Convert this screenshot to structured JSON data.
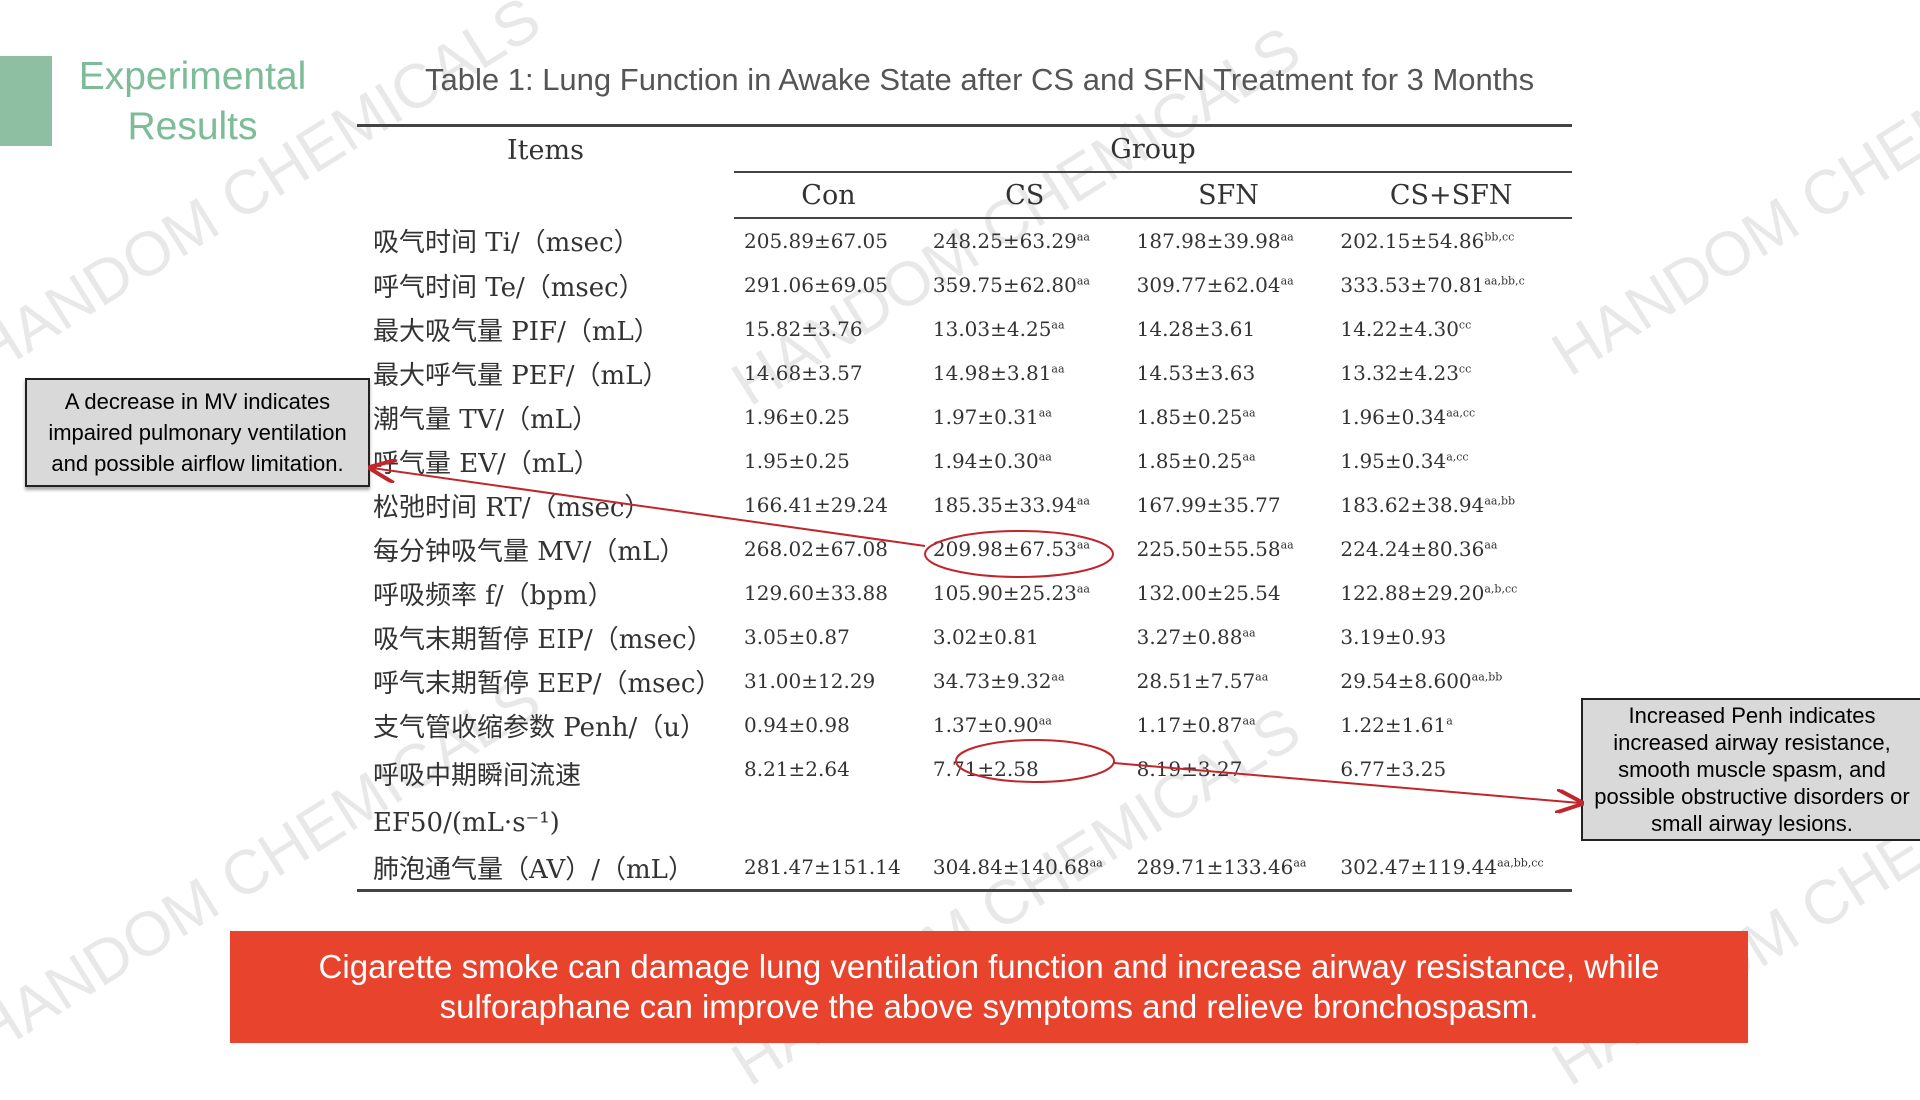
{
  "section_title": "Experimental Results",
  "table_title": "Table 1: Lung Function in Awake State after CS and SFN Treatment for 3 Months",
  "table": {
    "items_header": "Items",
    "group_header": "Group",
    "columns": [
      "Con",
      "CS",
      "SFN",
      "CS+SFN"
    ],
    "rows": [
      {
        "item": "吸气时间 Ti/（msec）",
        "con": "205.89±67.05",
        "cs": "248.25±63.29",
        "cs_sup": "aa",
        "sfn": "187.98±39.98",
        "sfn_sup": "aa",
        "cssfn": "202.15±54.86",
        "cssfn_sup": "bb,cc"
      },
      {
        "item": "呼气时间 Te/（msec）",
        "con": "291.06±69.05",
        "cs": "359.75±62.80",
        "cs_sup": "aa",
        "sfn": "309.77±62.04",
        "sfn_sup": "aa",
        "cssfn": "333.53±70.81",
        "cssfn_sup": "aa,bb,c"
      },
      {
        "item": "最大吸气量 PIF/（mL）",
        "con": "15.82±3.76",
        "cs": "13.03±4.25",
        "cs_sup": "aa",
        "sfn": "14.28±3.61",
        "sfn_sup": "",
        "cssfn": "14.22±4.30",
        "cssfn_sup": "cc"
      },
      {
        "item": "最大呼气量 PEF/（mL）",
        "con": "14.68±3.57",
        "cs": "14.98±3.81",
        "cs_sup": "aa",
        "sfn": "14.53±3.63",
        "sfn_sup": "",
        "cssfn": "13.32±4.23",
        "cssfn_sup": "cc"
      },
      {
        "item": "潮气量 TV/（mL）",
        "con": "1.96±0.25",
        "cs": "1.97±0.31",
        "cs_sup": "aa",
        "sfn": "1.85±0.25",
        "sfn_sup": "aa",
        "cssfn": "1.96±0.34",
        "cssfn_sup": "aa,cc"
      },
      {
        "item": "呼气量 EV/（mL）",
        "con": "1.95±0.25",
        "cs": "1.94±0.30",
        "cs_sup": "aa",
        "sfn": "1.85±0.25",
        "sfn_sup": "aa",
        "cssfn": "1.95±0.34",
        "cssfn_sup": "a,cc"
      },
      {
        "item": "松弛时间 RT/（msec）",
        "con": "166.41±29.24",
        "cs": "185.35±33.94",
        "cs_sup": "aa",
        "sfn": "167.99±35.77",
        "sfn_sup": "",
        "cssfn": "183.62±38.94",
        "cssfn_sup": "aa,bb"
      },
      {
        "item": "每分钟吸气量 MV/（mL）",
        "con": "268.02±67.08",
        "cs": "209.98±67.53",
        "cs_sup": "aa",
        "sfn": "225.50±55.58",
        "sfn_sup": "aa",
        "cssfn": "224.24±80.36",
        "cssfn_sup": "aa"
      },
      {
        "item": "呼吸频率 f/（bpm）",
        "con": "129.60±33.88",
        "cs": "105.90±25.23",
        "cs_sup": "aa",
        "sfn": "132.00±25.54",
        "sfn_sup": "",
        "cssfn": "122.88±29.20",
        "cssfn_sup": "a,b,cc"
      },
      {
        "item": "吸气末期暂停 EIP/（msec）",
        "con": "3.05±0.87",
        "cs": "3.02±0.81",
        "cs_sup": "",
        "sfn": "3.27±0.88",
        "sfn_sup": "aa",
        "cssfn": "3.19±0.93",
        "cssfn_sup": ""
      },
      {
        "item": "呼气末期暂停 EEP/（msec）",
        "con": "31.00±12.29",
        "cs": "34.73±9.32",
        "cs_sup": "aa",
        "sfn": "28.51±7.57",
        "sfn_sup": "aa",
        "cssfn": "29.54±8.600",
        "cssfn_sup": "aa,bb"
      },
      {
        "item": "支气管收缩参数 Penh/（u）",
        "con": "0.94±0.98",
        "cs": "1.37±0.90",
        "cs_sup": "aa",
        "sfn": "1.17±0.87",
        "sfn_sup": "aa",
        "cssfn": "1.22±1.61",
        "cssfn_sup": "a"
      },
      {
        "item": "呼吸中期瞬间流速",
        "item_line2": "EF50/(mL·s⁻¹)",
        "con": "8.21±2.64",
        "cs": "7.71±2.58",
        "cs_sup": "",
        "sfn": "8.19±3.27",
        "sfn_sup": "",
        "cssfn": "6.77±3.25",
        "cssfn_sup": ""
      },
      {
        "item": "肺泡通气量（AV）/（mL）",
        "con": "281.47±151.14",
        "cs": "304.84±140.68",
        "cs_sup": "aa",
        "sfn": "289.71±133.46",
        "sfn_sup": "aa",
        "cssfn": "302.47±119.44",
        "cssfn_sup": "aa,bb,cc"
      }
    ]
  },
  "callout_left": "A decrease in MV indicates impaired pulmonary ventilation and possible airflow limitation.",
  "callout_right": "Increased Penh indicates increased airway resistance, smooth muscle spasm, and possible obstructive disorders or small airway lesions.",
  "banner": "Cigarette smoke can damage lung ventilation function and increase airway resistance, while sulforaphane can improve the above symptoms and relieve bronchospasm.",
  "watermark_text": "HANDOM CHEMICALS",
  "colors": {
    "accent_green": "#7dbb99",
    "banner_red": "#e8432d",
    "annotation_red": "#c0262b",
    "callout_gray": "#d9d9d9"
  }
}
